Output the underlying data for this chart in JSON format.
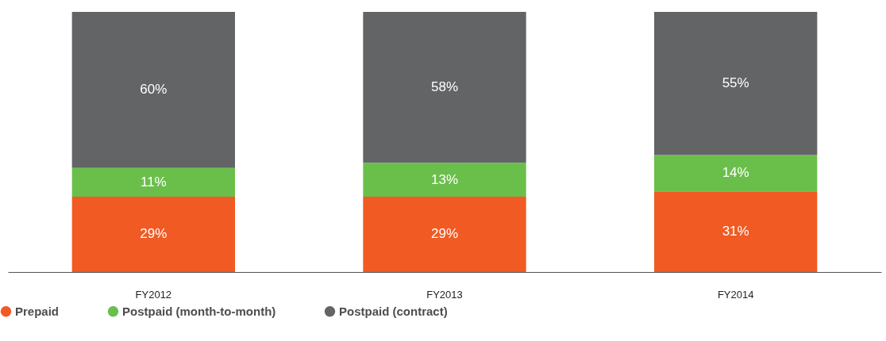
{
  "chart_data": {
    "type": "bar",
    "stacked": true,
    "categories": [
      "FY2012",
      "FY2013",
      "FY2014"
    ],
    "series": [
      {
        "name": "Prepaid",
        "color": "#f15a22",
        "values": [
          29,
          29,
          31
        ],
        "value_labels": [
          "29%",
          "29%",
          "31%"
        ]
      },
      {
        "name": "Postpaid (month-to-month)",
        "color": "#6abf4b",
        "values": [
          11,
          13,
          14
        ],
        "value_labels": [
          "11%",
          "13%",
          "14%"
        ]
      },
      {
        "name": "Postpaid (contract)",
        "color": "#636466",
        "values": [
          60,
          58,
          55
        ],
        "value_labels": [
          "60%",
          "58%",
          "55%"
        ]
      }
    ],
    "tick_labels": "x",
    "legend": "bottom left"
  }
}
